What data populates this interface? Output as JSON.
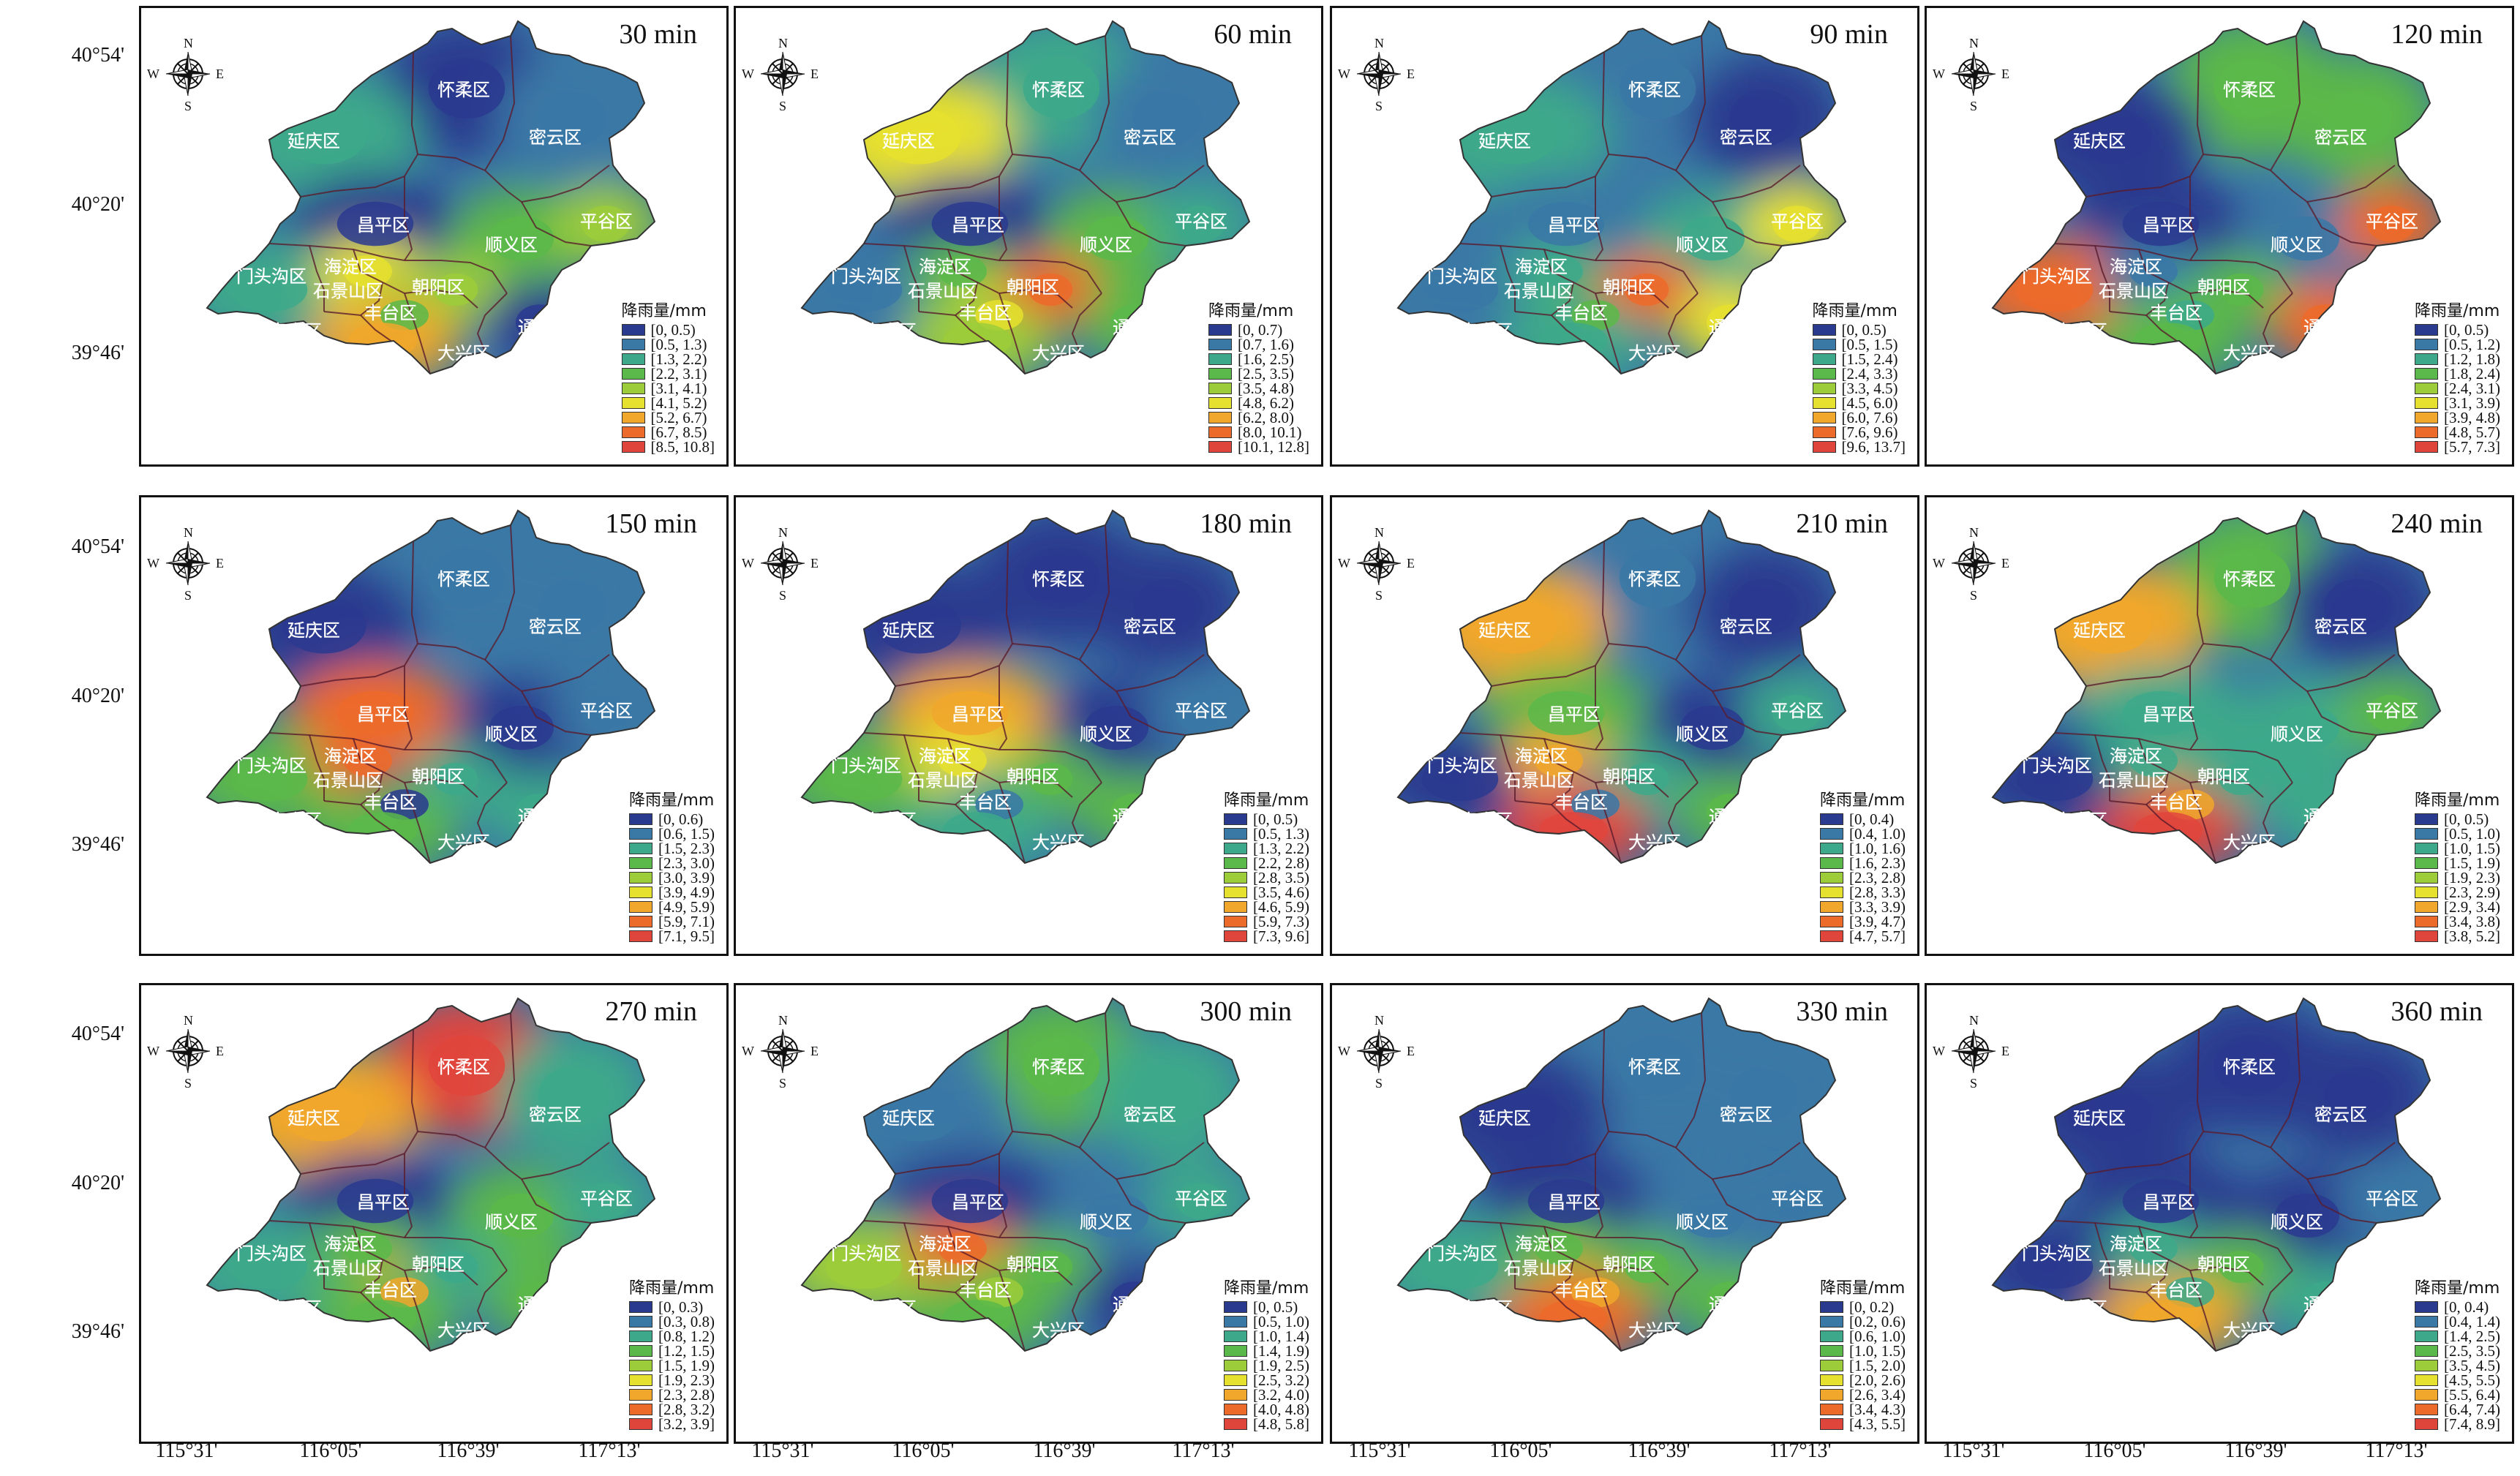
{
  "axes": {
    "lat_labels": [
      "40°54'",
      "40°20'",
      "39°46'"
    ],
    "lon_labels": [
      "115°31'",
      "116°05'",
      "116°39'",
      "117°13'"
    ]
  },
  "legend_title": "降雨量/mm",
  "compass": {
    "n": "N",
    "s": "S",
    "e": "E",
    "w": "W"
  },
  "district_labels": [
    "怀柔区",
    "延庆区",
    "密云区",
    "昌平区",
    "顺义区",
    "平谷区",
    "门头沟区",
    "海淀区",
    "石景山区",
    "朝阳区",
    "丰台区",
    "房山区",
    "大兴区",
    "通州区"
  ],
  "legend_colors": [
    "#2a3a8f",
    "#3a78a6",
    "#3da98a",
    "#5bb84a",
    "#9ccc3a",
    "#e6e02e",
    "#f0a72c",
    "#ec6a2a",
    "#e0453c"
  ],
  "panels": [
    {
      "title": "30 min",
      "classes": [
        "[0, 0.5)",
        "[0.5, 1.3)",
        "[1.3, 2.2)",
        "[2.2, 3.1)",
        "[3.1, 4.1)",
        "[4.1, 5.2)",
        "[5.2, 6.7)",
        "[6.7, 8.5)",
        "[8.5, 10.8]"
      ],
      "level": [
        0,
        2,
        1,
        0,
        3,
        4,
        2,
        5,
        3,
        4,
        6,
        0
      ]
    },
    {
      "title": "60 min",
      "classes": [
        "[0, 0.7)",
        "[0.7, 1.6)",
        "[1.6, 2.5)",
        "[2.5, 3.5)",
        "[3.5, 4.8)",
        "[4.8, 6.2)",
        "[6.2, 8.0)",
        "[8.0, 10.1)",
        "[10.1, 12.8]"
      ],
      "level": [
        2,
        5,
        1,
        0,
        3,
        2,
        1,
        3,
        5,
        7,
        4,
        3
      ]
    },
    {
      "title": "90 min",
      "classes": [
        "[0, 0.5)",
        "[0.5, 1.5)",
        "[1.5, 2.4)",
        "[2.4, 3.3)",
        "[3.3, 4.5)",
        "[4.5, 6.0)",
        "[6.0, 7.6)",
        "[7.6, 9.6)",
        "[9.6, 13.7]"
      ],
      "level": [
        1,
        2,
        0,
        1,
        2,
        5,
        1,
        2,
        3,
        7,
        2,
        5
      ]
    },
    {
      "title": "120 min",
      "classes": [
        "[0, 0.5)",
        "[0.5, 1.2)",
        "[1.2, 1.8)",
        "[1.8, 2.4)",
        "[2.4, 3.1)",
        "[3.1, 3.9)",
        "[3.9, 4.8)",
        "[4.8, 5.7)",
        "[5.7, 7.3]"
      ],
      "level": [
        3,
        0,
        3,
        0,
        1,
        7,
        7,
        1,
        2,
        3,
        3,
        7
      ]
    },
    {
      "title": "150 min",
      "classes": [
        "[0, 0.6)",
        "[0.6, 1.5)",
        "[1.5, 2.3)",
        "[2.3, 3.0)",
        "[3.0, 3.9)",
        "[3.9, 4.9)",
        "[4.9, 5.9)",
        "[5.9, 7.1)",
        "[7.1, 9.5]"
      ],
      "level": [
        1,
        0,
        1,
        7,
        0,
        1,
        3,
        7,
        0,
        2,
        3,
        2
      ]
    },
    {
      "title": "180 min",
      "classes": [
        "[0, 0.5)",
        "[0.5, 1.3)",
        "[1.3, 2.2)",
        "[2.2, 2.8)",
        "[2.8, 3.5)",
        "[3.5, 4.6)",
        "[4.6, 5.9)",
        "[5.9, 7.3)",
        "[7.3, 9.6]"
      ],
      "level": [
        0,
        0,
        0,
        6,
        0,
        1,
        3,
        5,
        1,
        3,
        2,
        3
      ]
    },
    {
      "title": "210 min",
      "classes": [
        "[0, 0.4)",
        "[0.4, 1.0)",
        "[1.0, 1.6)",
        "[1.6, 2.3)",
        "[2.3, 2.8)",
        "[2.8, 3.3)",
        "[3.3, 3.9)",
        "[3.9, 4.7)",
        "[4.7, 5.7]"
      ],
      "level": [
        1,
        6,
        0,
        3,
        0,
        2,
        0,
        6,
        1,
        2,
        8,
        3
      ]
    },
    {
      "title": "240 min",
      "classes": [
        "[0, 0.5)",
        "[0.5, 1.0)",
        "[1.0, 1.5)",
        "[1.5, 1.9)",
        "[1.9, 2.3)",
        "[2.3, 2.9)",
        "[2.9, 3.4)",
        "[3.4, 3.8)",
        "[3.8, 5.2]"
      ],
      "level": [
        3,
        6,
        0,
        2,
        2,
        3,
        0,
        2,
        6,
        2,
        8,
        2
      ]
    },
    {
      "title": "270 min",
      "classes": [
        "[0, 0.3)",
        "[0.3, 0.8)",
        "[0.8, 1.2)",
        "[1.2, 1.5)",
        "[1.5, 1.9)",
        "[1.9, 2.3)",
        "[2.3, 2.8)",
        "[2.8, 3.2)",
        "[3.2, 3.9]"
      ],
      "level": [
        8,
        6,
        2,
        0,
        3,
        2,
        2,
        3,
        6,
        2,
        3,
        3
      ]
    },
    {
      "title": "300 min",
      "classes": [
        "[0, 0.5)",
        "[0.5, 1.0)",
        "[1.0, 1.4)",
        "[1.4, 1.9)",
        "[1.9, 2.5)",
        "[2.5, 3.2)",
        "[3.2, 4.0)",
        "[4.0, 4.8)",
        "[4.8, 5.8]"
      ],
      "level": [
        3,
        1,
        2,
        0,
        1,
        2,
        4,
        7,
        4,
        3,
        3,
        0
      ]
    },
    {
      "title": "330 min",
      "classes": [
        "[0, 0.2)",
        "[0.2, 0.6)",
        "[0.6, 1.0)",
        "[1.0, 1.5)",
        "[1.5, 2.0)",
        "[2.0, 2.6)",
        "[2.6, 3.4)",
        "[3.4, 4.3)",
        "[4.3, 5.5]"
      ],
      "level": [
        1,
        0,
        1,
        0,
        1,
        1,
        2,
        3,
        6,
        3,
        7,
        3
      ]
    },
    {
      "title": "360 min",
      "classes": [
        "[0, 0.4)",
        "[0.4, 1.4)",
        "[1.4, 2.5)",
        "[2.5, 3.5)",
        "[3.5, 4.5)",
        "[4.5, 5.5)",
        "[5.5, 6.4)",
        "[6.4, 7.4)",
        "[7.4, 8.9]"
      ],
      "level": [
        0,
        0,
        0,
        0,
        0,
        1,
        0,
        2,
        2,
        3,
        6,
        2
      ]
    }
  ]
}
